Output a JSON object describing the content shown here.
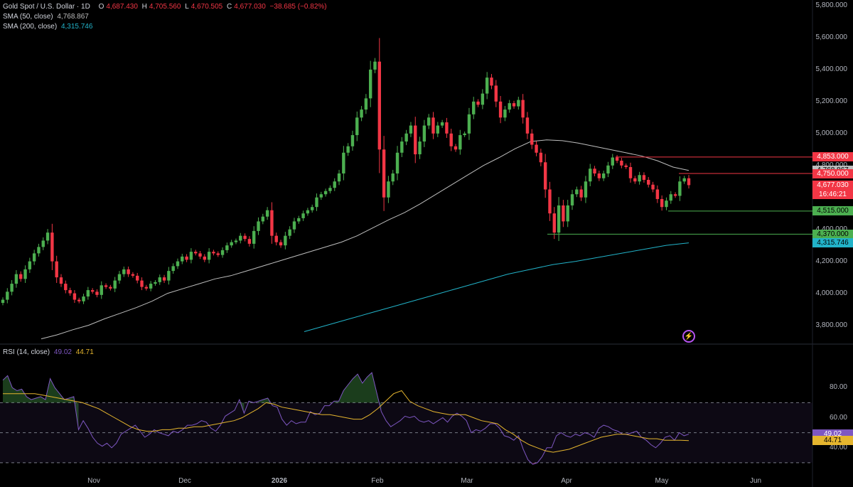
{
  "header": {
    "symbol": "Gold Spot / U.S. Dollar · 1D",
    "ohlc": {
      "o_label": "O",
      "o": "4,687.430",
      "h_label": "H",
      "h": "4,705.560",
      "l_label": "L",
      "l": "4,670.505",
      "c_label": "C",
      "c": "4,677.030",
      "change": "−38.685 (−0.82%)"
    },
    "sma50": {
      "label": "SMA (50, close)",
      "value": "4,768.867",
      "color": "#bdbdbd"
    },
    "sma200": {
      "label": "SMA (200, close)",
      "value": "4,315.746",
      "color": "#22b3c9"
    }
  },
  "rsi_header": {
    "label": "RSI (14, close)",
    "rsi": "49.02",
    "ma": "44.71",
    "rsi_color": "#7e57c2",
    "ma_color": "#e5b52e"
  },
  "price_axis": [
    "5,800.000",
    "5,600.000",
    "5,400.000",
    "5,200.000",
    "5,000.000",
    "4,800.000",
    "4,400.000",
    "4,200.000",
    "4,000.000",
    "3,800.000"
  ],
  "rsi_axis": [
    "80.00",
    "60.00",
    "40.00"
  ],
  "x_axis": [
    "Nov",
    "Dec",
    "2026",
    "Feb",
    "Mar",
    "Apr",
    "May",
    "Jun"
  ],
  "price_labels": [
    {
      "text": "4,853.000",
      "price": 4853,
      "bg": "#f23645",
      "fg": "#ffffff"
    },
    {
      "text": "4,768.867",
      "price": 4768.867,
      "bg": "#bdbdbd",
      "fg": "#000000"
    },
    {
      "text": "4,750.000",
      "price": 4750,
      "bg": "#f23645",
      "fg": "#ffffff"
    },
    {
      "text": "4,677.030",
      "price": 4677.03,
      "bg": "#f23645",
      "fg": "#ffffff",
      "sub": "16:46:21"
    },
    {
      "text": "4,515.000",
      "price": 4515,
      "bg": "#4caf50",
      "fg": "#000000"
    },
    {
      "text": "4,370.000",
      "price": 4370,
      "bg": "#4caf50",
      "fg": "#000000"
    },
    {
      "text": "4,315.746",
      "price": 4315.746,
      "bg": "#22b3c9",
      "fg": "#000000"
    }
  ],
  "rsi_labels": [
    {
      "text": "49.02",
      "value": 49.02,
      "bg": "#7e57c2",
      "fg": "#ffffff"
    },
    {
      "text": "44.71",
      "value": 44.71,
      "bg": "#e5b52e",
      "fg": "#000000"
    }
  ],
  "colors": {
    "up": "#4caf50",
    "down": "#f23645",
    "rsi_band": "rgba(126,87,194,0.10)"
  },
  "chart_data": {
    "type": "candlestick",
    "timeframe": "1D",
    "ylim": [
      3700,
      5800
    ],
    "rsi_ylim": [
      20,
      100
    ],
    "rsi_levels": [
      70,
      50,
      30
    ],
    "key_levels": [
      4853,
      4750,
      4515,
      4370
    ],
    "candles_close": [
      3960,
      4010,
      4060,
      4120,
      4090,
      4150,
      4200,
      4250,
      4290,
      4330,
      4380,
      4200,
      4100,
      4060,
      4020,
      4000,
      3960,
      3950,
      3980,
      4020,
      4010,
      3990,
      4050,
      4040,
      4030,
      4080,
      4120,
      4150,
      4120,
      4110,
      4080,
      4040,
      4030,
      4060,
      4070,
      4100,
      4080,
      4140,
      4170,
      4200,
      4230,
      4210,
      4260,
      4250,
      4230,
      4210,
      4260,
      4250,
      4240,
      4270,
      4300,
      4320,
      4330,
      4360,
      4340,
      4310,
      4390,
      4450,
      4480,
      4520,
      4360,
      4320,
      4300,
      4360,
      4400,
      4450,
      4470,
      4500,
      4520,
      4540,
      4600,
      4620,
      4640,
      4660,
      4700,
      4750,
      4880,
      4920,
      4990,
      5100,
      5150,
      5220,
      5400,
      5450,
      4900,
      4600,
      4700,
      4750,
      4880,
      4950,
      5000,
      5050,
      4870,
      4950,
      5050,
      5100,
      5000,
      5050,
      5070,
      5000,
      4920,
      4900,
      4990,
      5000,
      5120,
      5200,
      5180,
      5250,
      5350,
      5300,
      5200,
      5100,
      5150,
      5190,
      5170,
      5210,
      5100,
      5000,
      4930,
      4880,
      4820,
      4650,
      4500,
      4380,
      4550,
      4450,
      4550,
      4620,
      4650,
      4600,
      4700,
      4780,
      4750,
      4720,
      4750,
      4800,
      4850,
      4830,
      4800,
      4790,
      4720,
      4700,
      4740,
      4710,
      4680,
      4650,
      4590,
      4540,
      4580,
      4620,
      4610,
      4700,
      4720,
      4677.03
    ],
    "sma50": [
      3715,
      3740,
      3772,
      3800,
      3840,
      3875,
      3910,
      3950,
      4000,
      4030,
      4060,
      4090,
      4110,
      4140,
      4170,
      4200,
      4230,
      4260,
      4290,
      4320,
      4360,
      4410,
      4460,
      4505,
      4560,
      4620,
      4680,
      4740,
      4800,
      4850,
      4905,
      4950,
      4960,
      4955,
      4940,
      4920,
      4900,
      4880,
      4860,
      4830,
      4790,
      4768.867
    ],
    "sma200": [
      3760,
      3800,
      3840,
      3880,
      3920,
      3960,
      4000,
      4040,
      4080,
      4120,
      4150,
      4180,
      4200,
      4225,
      4250,
      4275,
      4300,
      4315.746
    ],
    "rsi": [
      85,
      88,
      80,
      78,
      79,
      74,
      72,
      73,
      74,
      72,
      86,
      80,
      76,
      72,
      73,
      74,
      52,
      58,
      53,
      47,
      43,
      41,
      43,
      40,
      43,
      49,
      51,
      53,
      55,
      51,
      47,
      49,
      52,
      50,
      49,
      48,
      51,
      50,
      52,
      55,
      55,
      56,
      58,
      57,
      53,
      51,
      55,
      61,
      63,
      65,
      72,
      63,
      71,
      70,
      71,
      72,
      73,
      68,
      67,
      59,
      55,
      58,
      56,
      57,
      57,
      64,
      62,
      63,
      68,
      68,
      71,
      71,
      78,
      82,
      86,
      89,
      83,
      87,
      90,
      77,
      64,
      58,
      54,
      56,
      58,
      61,
      60,
      61,
      58,
      57,
      58,
      56,
      58,
      60,
      57,
      61,
      63,
      61,
      58,
      50,
      52,
      51,
      53,
      56,
      56,
      53,
      48,
      47,
      45,
      48,
      39,
      32,
      29,
      30,
      34,
      40,
      40,
      48,
      50,
      48,
      47,
      49,
      48,
      50,
      49,
      47,
      53,
      55,
      54,
      52,
      51,
      49,
      49,
      50,
      51,
      47,
      45,
      42,
      40,
      43,
      47,
      48,
      45,
      50,
      48,
      49.02
    ],
    "rsi_ma": [
      76,
      76,
      76,
      76,
      76,
      75,
      74,
      73,
      72,
      71,
      70,
      68,
      66,
      63,
      60,
      57,
      54,
      52,
      51,
      51,
      52,
      52,
      53,
      53,
      54,
      54,
      55,
      56,
      57,
      58,
      60,
      63,
      66,
      70,
      69,
      67,
      66,
      65,
      64,
      63,
      62,
      62,
      61,
      60,
      59,
      59,
      62,
      66,
      71,
      76,
      78,
      71,
      68,
      66,
      64,
      63,
      62,
      62,
      62,
      60,
      58,
      57,
      56,
      52,
      49,
      45,
      42,
      40,
      38,
      37,
      38,
      39,
      41,
      43,
      45,
      47,
      48,
      49,
      49,
      48,
      47,
      46,
      46,
      45,
      45,
      45,
      44.71
    ]
  }
}
